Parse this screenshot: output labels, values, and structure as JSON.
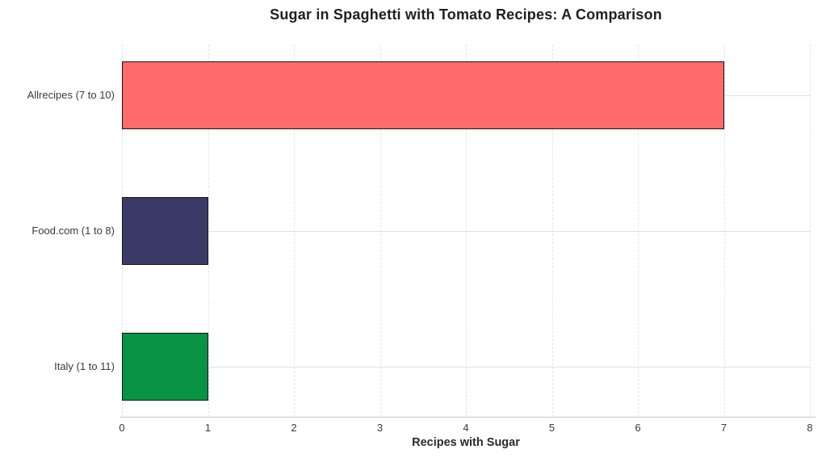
{
  "chart_data": {
    "type": "bar",
    "orientation": "horizontal",
    "title": "Sugar in Spaghetti with Tomato Recipes: A Comparison",
    "xlabel": "Recipes with Sugar",
    "ylabel": "",
    "categories": [
      "Allrecipes (7 to 10)",
      "Food.com (1 to 8)",
      "Italy (1 to 11)"
    ],
    "values": [
      7,
      1,
      1
    ],
    "bar_colors": [
      "#ff6b6b",
      "#3b3a66",
      "#089444"
    ],
    "bar_border_color": "#161616",
    "xlim": [
      0,
      8
    ],
    "xticks": [
      0,
      1,
      2,
      3,
      4,
      5,
      6,
      7,
      8
    ],
    "grid": {
      "vertical": "dashed",
      "horizontal": "solid"
    },
    "gridline_color_vertical": "#e4e4e4",
    "gridline_color_horizontal": "#e0e0e0",
    "axis_line_color": "#c9c9c9",
    "legend": "none",
    "background_color": "#ffffff"
  }
}
